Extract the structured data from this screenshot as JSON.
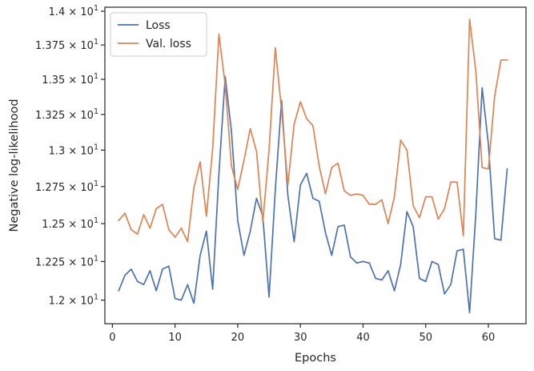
{
  "chart_data": {
    "type": "line",
    "title": "",
    "xlabel": "Epochs",
    "ylabel": "Negative log-likelihood",
    "xlim": [
      -1.2,
      66
    ],
    "ylim": [
      11.85,
      14.03
    ],
    "x_ticks": [
      0,
      10,
      20,
      30,
      40,
      50,
      60
    ],
    "y_ticks": [
      {
        "value": 12.0,
        "mantissa": "1.2",
        "base": "10",
        "exp": "1"
      },
      {
        "value": 12.25,
        "mantissa": "1.225",
        "base": "10",
        "exp": "1"
      },
      {
        "value": 12.5,
        "mantissa": "1.25",
        "base": "10",
        "exp": "1"
      },
      {
        "value": 12.75,
        "mantissa": "1.275",
        "base": "10",
        "exp": "1"
      },
      {
        "value": 13.0,
        "mantissa": "1.3",
        "base": "10",
        "exp": "1"
      },
      {
        "value": 13.25,
        "mantissa": "1.325",
        "base": "10",
        "exp": "1"
      },
      {
        "value": 13.5,
        "mantissa": "1.35",
        "base": "10",
        "exp": "1"
      },
      {
        "value": 13.75,
        "mantissa": "1.375",
        "base": "10",
        "exp": "1"
      },
      {
        "value": 14.0,
        "mantissa": "1.4",
        "base": "10",
        "exp": "1"
      }
    ],
    "y_scale": "log",
    "grid": false,
    "legend_position": "top-left",
    "x": [
      1,
      2,
      3,
      4,
      5,
      6,
      7,
      8,
      9,
      10,
      11,
      12,
      13,
      14,
      15,
      16,
      17,
      18,
      19,
      20,
      21,
      22,
      23,
      24,
      25,
      26,
      27,
      28,
      29,
      30,
      31,
      32,
      33,
      34,
      35,
      36,
      37,
      38,
      39,
      40,
      41,
      42,
      43,
      44,
      45,
      46,
      47,
      48,
      49,
      50,
      51,
      52,
      53,
      54,
      55,
      56,
      57,
      58,
      59,
      60,
      61,
      62,
      63
    ],
    "series": [
      {
        "name": "Loss",
        "color": "#4c72b0",
        "values": [
          12.06,
          12.16,
          12.2,
          12.12,
          12.1,
          12.19,
          12.06,
          12.2,
          12.22,
          12.01,
          12.0,
          12.1,
          11.98,
          12.29,
          12.45,
          12.07,
          12.84,
          13.52,
          13.13,
          12.52,
          12.29,
          12.45,
          12.67,
          12.55,
          12.02,
          12.73,
          13.35,
          12.69,
          12.38,
          12.76,
          12.84,
          12.67,
          12.65,
          12.44,
          12.29,
          12.48,
          12.49,
          12.28,
          12.24,
          12.25,
          12.24,
          12.14,
          12.13,
          12.19,
          12.06,
          12.23,
          12.58,
          12.48,
          12.14,
          12.12,
          12.25,
          12.23,
          12.04,
          12.1,
          12.32,
          12.33,
          11.92,
          12.57,
          13.44,
          13.04,
          12.4,
          12.39,
          12.87
        ]
      },
      {
        "name": "Val. loss",
        "color": "#dd8452",
        "values": [
          12.52,
          12.57,
          12.46,
          12.43,
          12.56,
          12.47,
          12.6,
          12.63,
          12.46,
          12.41,
          12.47,
          12.38,
          12.74,
          12.92,
          12.55,
          13.01,
          13.83,
          13.46,
          12.89,
          12.73,
          12.93,
          13.15,
          12.99,
          12.51,
          13.0,
          13.73,
          13.28,
          12.76,
          13.18,
          13.34,
          13.22,
          13.17,
          12.89,
          12.7,
          12.88,
          12.91,
          12.72,
          12.69,
          12.7,
          12.69,
          12.63,
          12.63,
          12.66,
          12.5,
          12.68,
          13.07,
          13.0,
          12.62,
          12.54,
          12.68,
          12.68,
          12.53,
          12.6,
          12.78,
          12.78,
          12.42,
          13.94,
          13.56,
          12.88,
          12.87,
          13.38,
          13.64,
          13.64
        ]
      }
    ]
  }
}
